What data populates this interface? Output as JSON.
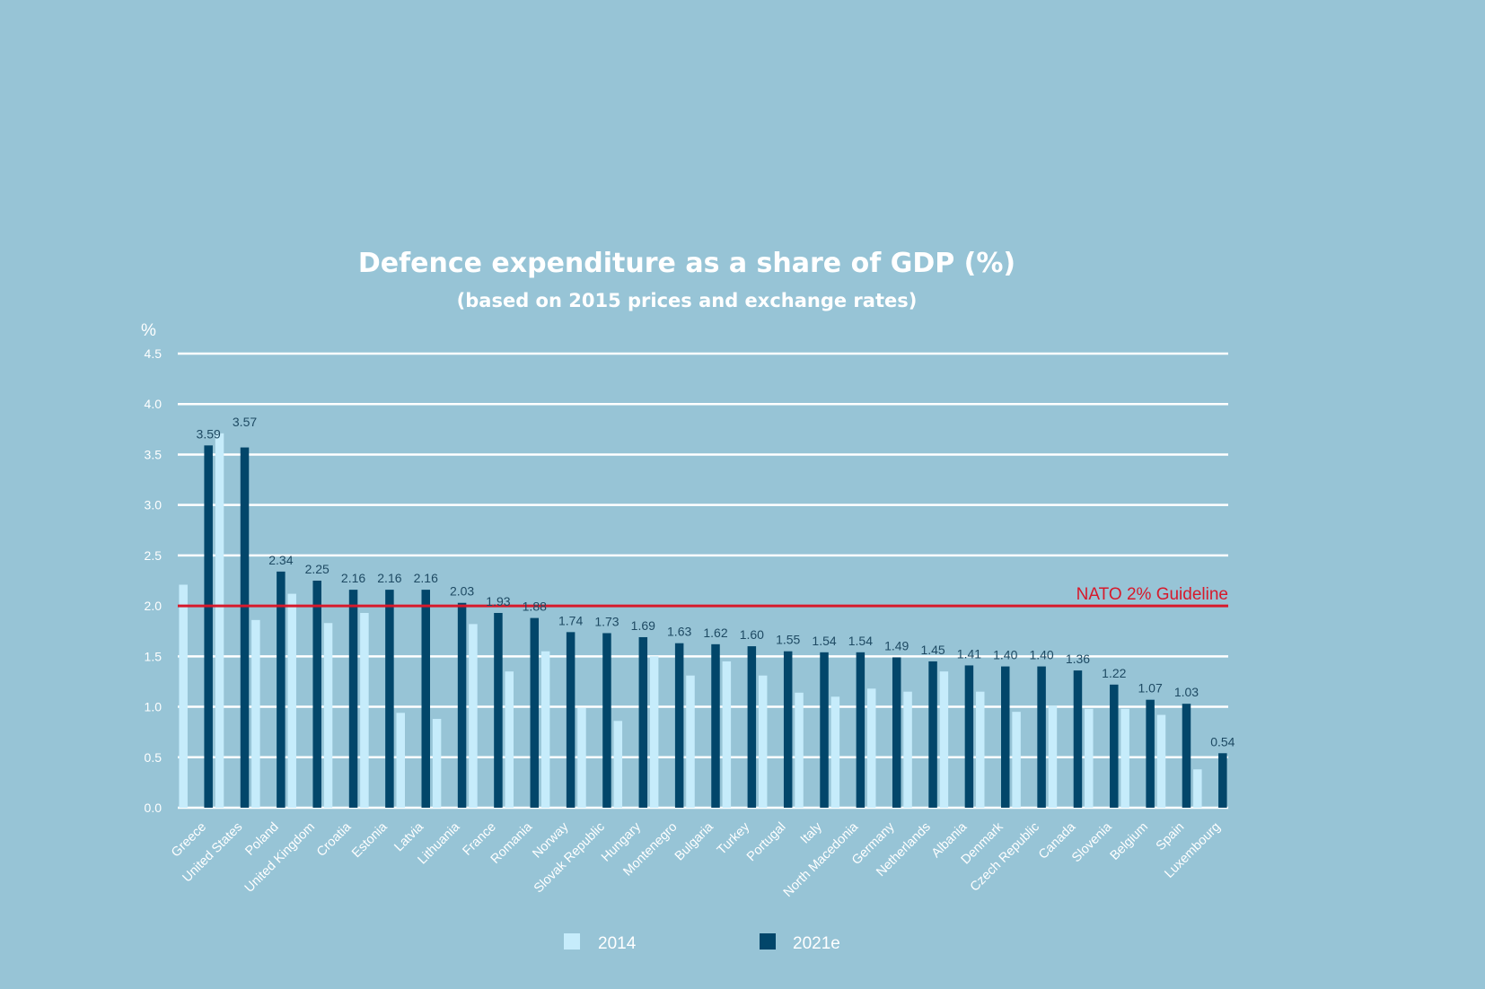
{
  "chart_data": {
    "type": "bar",
    "title": "Defence expenditure as a share of GDP (%)",
    "subtitle": "(based on 2015 prices and exchange rates)",
    "ylabel": "%",
    "ylim": [
      0,
      4.5
    ],
    "yticks": [
      "0.0",
      "0.5",
      "1.0",
      "1.5",
      "2.0",
      "2.5",
      "3.0",
      "3.5",
      "4.0",
      "4.5"
    ],
    "grid": true,
    "legend_position": "bottom",
    "categories": [
      "Greece",
      "United States",
      "Poland",
      "United Kingdom",
      "Croatia",
      "Estonia",
      "Latvia",
      "Lithuania",
      "France",
      "Romania",
      "Norway",
      "Slovak Republic",
      "Hungary",
      "Montenegro",
      "Bulgaria",
      "Turkey",
      "Portugal",
      "Italy",
      "North Macedonia",
      "Germany",
      "Netherlands",
      "Albania",
      "Denmark",
      "Czech Republic",
      "Canada",
      "Slovenia",
      "Belgium",
      "Spain",
      "Luxembourg"
    ],
    "series": [
      {
        "name": "2014",
        "color": "#c6ecfb",
        "values": [
          2.21,
          3.71,
          1.86,
          2.12,
          1.83,
          1.93,
          0.94,
          0.88,
          1.82,
          1.35,
          1.55,
          0.99,
          0.86,
          1.5,
          1.31,
          1.45,
          1.31,
          1.14,
          1.1,
          1.18,
          1.15,
          1.35,
          1.15,
          0.95,
          1.01,
          0.98,
          0.98,
          0.92,
          0.38
        ]
      },
      {
        "name": "2021e",
        "color": "#02466a",
        "values": [
          3.59,
          3.57,
          2.34,
          2.25,
          2.16,
          2.16,
          2.16,
          2.03,
          1.93,
          1.88,
          1.74,
          1.73,
          1.69,
          1.63,
          1.62,
          1.6,
          1.55,
          1.54,
          1.54,
          1.49,
          1.45,
          1.41,
          1.4,
          1.4,
          1.36,
          1.22,
          1.07,
          1.03,
          0.54
        ],
        "value_labels": [
          "3.59",
          "3.57",
          "2.34",
          "2.25",
          "2.16",
          "2.16",
          "2.16",
          "2.03",
          "1.93",
          "1.88",
          "1.74",
          "1.73",
          "1.69",
          "1.63",
          "1.62",
          "1.60",
          "1.55",
          "1.54",
          "1.54",
          "1.49",
          "1.45",
          "1.41",
          "1.40",
          "1.40",
          "1.36",
          "1.22",
          "1.07",
          "1.03",
          "0.54"
        ]
      }
    ],
    "reference_line": {
      "value": 2.0,
      "label": "NATO 2% Guideline",
      "color": "#d7192b"
    }
  }
}
